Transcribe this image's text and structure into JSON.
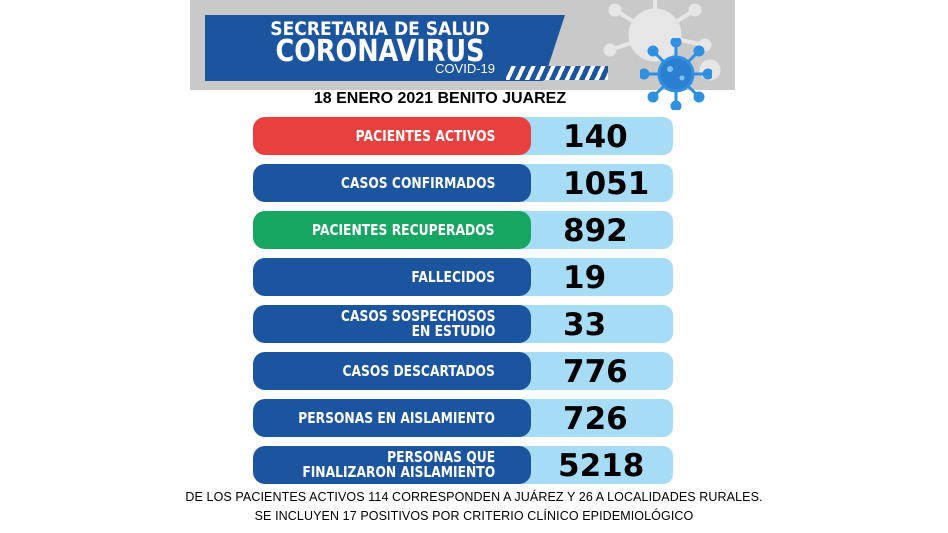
{
  "header": {
    "subtitle": "SECRETARIA DE SALUD",
    "title": "CORONAVIRUS",
    "tag": "COVID-19",
    "date_line": "18 ENERO  2021 BENITO JUAREZ"
  },
  "rows": [
    {
      "label_1": "PACIENTES ACTIVOS",
      "label_2": "",
      "value": "140",
      "color": "#e8403e"
    },
    {
      "label_1": "CASOS CONFIRMADOS",
      "label_2": "",
      "value": "1051",
      "color": "#1b55a0"
    },
    {
      "label_1": "PACIENTES RECUPERADOS",
      "label_2": "",
      "value": "892",
      "color": "#16a661"
    },
    {
      "label_1": "FALLECIDOS",
      "label_2": "",
      "value": "19",
      "color": "#1b55a0"
    },
    {
      "label_1": "CASOS SOSPECHOSOS",
      "label_2": "EN ESTUDIO",
      "value": "33",
      "color": "#1b55a0"
    },
    {
      "label_1": "CASOS DESCARTADOS",
      "label_2": "",
      "value": "776",
      "color": "#1b55a0"
    },
    {
      "label_1": "PERSONAS EN AISLAMIENTO",
      "label_2": "",
      "value": "726",
      "color": "#1b55a0"
    },
    {
      "label_1": "PERSONAS QUE",
      "label_2": "FINALIZARON AISLAMIENTO",
      "value": "5218",
      "color": "#1b55a0"
    }
  ],
  "footnotes": [
    "DE LOS PACIENTES ACTIVOS 114 CORRESPONDEN A JUÁREZ Y 26 A LOCALIDADES RURALES.",
    "SE INCLUYEN 17 POSITIVOS POR CRITERIO CLÍNICO EPIDEMIOLÓGICO"
  ],
  "colors": {
    "brand_blue": "#1b55a0",
    "alert_red": "#e8403e",
    "recovered_green": "#16a661",
    "value_light_blue": "#a7dcf6"
  },
  "icons": [
    "virus-icon"
  ]
}
